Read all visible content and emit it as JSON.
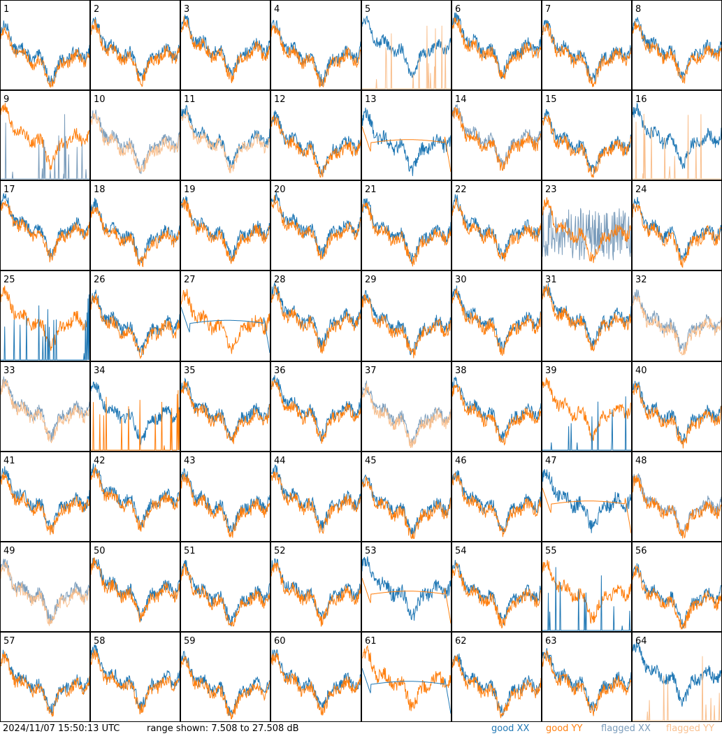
{
  "footer": {
    "timestamp": "2024/11/07 15:50:13 UTC",
    "range_text": "range shown: 7.508 to 27.508 dB"
  },
  "legend": [
    {
      "label": "good XX",
      "color": "#1f77b4"
    },
    {
      "label": "good YY",
      "color": "#ff7f0e"
    },
    {
      "label": "flagged XX",
      "color": "#7a9cbb"
    },
    {
      "label": "flagged YY",
      "color": "#f9c08f"
    }
  ],
  "colors": {
    "xx": "#1f77b4",
    "yy": "#ff7f0e",
    "xx_flagged": "#7a9cbb",
    "yy_flagged": "#f9c08f"
  },
  "chart_data": {
    "type": "line",
    "ylim": [
      7.508,
      27.508
    ],
    "grid_cols": 8,
    "panels": [
      {
        "label": "1",
        "xx": "good",
        "yy": "good",
        "note": ""
      },
      {
        "label": "2",
        "xx": "good",
        "yy": "good",
        "note": ""
      },
      {
        "label": "3",
        "xx": "good",
        "yy": "good",
        "note": ""
      },
      {
        "label": "4",
        "xx": "good",
        "yy": "good",
        "note": ""
      },
      {
        "label": "5",
        "xx": "good",
        "yy": "flagged",
        "note": "yy-spikes"
      },
      {
        "label": "6",
        "xx": "good",
        "yy": "good",
        "note": ""
      },
      {
        "label": "7",
        "xx": "good",
        "yy": "good",
        "note": ""
      },
      {
        "label": "8",
        "xx": "good",
        "yy": "good",
        "note": ""
      },
      {
        "label": "9",
        "xx": "flagged",
        "yy": "good",
        "note": "xx-spikes"
      },
      {
        "label": "10",
        "xx": "flagged",
        "yy": "flagged",
        "note": ""
      },
      {
        "label": "11",
        "xx": "good",
        "yy": "flagged",
        "note": ""
      },
      {
        "label": "12",
        "xx": "good",
        "yy": "good",
        "note": ""
      },
      {
        "label": "13",
        "xx": "good",
        "yy": "good",
        "note": "yy-flat"
      },
      {
        "label": "14",
        "xx": "flagged",
        "yy": "good",
        "note": ""
      },
      {
        "label": "15",
        "xx": "good",
        "yy": "good",
        "note": ""
      },
      {
        "label": "16",
        "xx": "good",
        "yy": "flagged",
        "note": "yy-spikes"
      },
      {
        "label": "17",
        "xx": "good",
        "yy": "good",
        "note": ""
      },
      {
        "label": "18",
        "xx": "good",
        "yy": "good",
        "note": ""
      },
      {
        "label": "19",
        "xx": "good",
        "yy": "good",
        "note": ""
      },
      {
        "label": "20",
        "xx": "good",
        "yy": "good",
        "note": ""
      },
      {
        "label": "21",
        "xx": "good",
        "yy": "good",
        "note": ""
      },
      {
        "label": "22",
        "xx": "good",
        "yy": "good",
        "note": ""
      },
      {
        "label": "23",
        "xx": "flagged",
        "yy": "good",
        "note": "xx-noisy"
      },
      {
        "label": "24",
        "xx": "good",
        "yy": "good",
        "note": ""
      },
      {
        "label": "25",
        "xx": "good",
        "yy": "good",
        "note": "xx-spikes"
      },
      {
        "label": "26",
        "xx": "good",
        "yy": "good",
        "note": ""
      },
      {
        "label": "27",
        "xx": "good",
        "yy": "good",
        "note": "xx-flat"
      },
      {
        "label": "28",
        "xx": "good",
        "yy": "good",
        "note": ""
      },
      {
        "label": "29",
        "xx": "good",
        "yy": "good",
        "note": ""
      },
      {
        "label": "30",
        "xx": "good",
        "yy": "good",
        "note": ""
      },
      {
        "label": "31",
        "xx": "good",
        "yy": "good",
        "note": ""
      },
      {
        "label": "32",
        "xx": "flagged",
        "yy": "flagged",
        "note": ""
      },
      {
        "label": "33",
        "xx": "flagged",
        "yy": "flagged",
        "note": ""
      },
      {
        "label": "34",
        "xx": "good",
        "yy": "good",
        "note": "yy-spikes"
      },
      {
        "label": "35",
        "xx": "good",
        "yy": "good",
        "note": ""
      },
      {
        "label": "36",
        "xx": "good",
        "yy": "good",
        "note": ""
      },
      {
        "label": "37",
        "xx": "flagged",
        "yy": "flagged",
        "note": ""
      },
      {
        "label": "38",
        "xx": "good",
        "yy": "good",
        "note": ""
      },
      {
        "label": "39",
        "xx": "good",
        "yy": "good",
        "note": "xx-spikes"
      },
      {
        "label": "40",
        "xx": "good",
        "yy": "good",
        "note": ""
      },
      {
        "label": "41",
        "xx": "good",
        "yy": "good",
        "note": ""
      },
      {
        "label": "42",
        "xx": "good",
        "yy": "good",
        "note": ""
      },
      {
        "label": "43",
        "xx": "good",
        "yy": "good",
        "note": ""
      },
      {
        "label": "44",
        "xx": "good",
        "yy": "good",
        "note": ""
      },
      {
        "label": "45",
        "xx": "good",
        "yy": "good",
        "note": ""
      },
      {
        "label": "46",
        "xx": "good",
        "yy": "good",
        "note": ""
      },
      {
        "label": "47",
        "xx": "good",
        "yy": "good",
        "note": "yy-flat"
      },
      {
        "label": "48",
        "xx": "flagged",
        "yy": "good",
        "note": ""
      },
      {
        "label": "49",
        "xx": "flagged",
        "yy": "flagged",
        "note": ""
      },
      {
        "label": "50",
        "xx": "good",
        "yy": "good",
        "note": ""
      },
      {
        "label": "51",
        "xx": "good",
        "yy": "good",
        "note": ""
      },
      {
        "label": "52",
        "xx": "good",
        "yy": "good",
        "note": ""
      },
      {
        "label": "53",
        "xx": "good",
        "yy": "good",
        "note": "yy-flat"
      },
      {
        "label": "54",
        "xx": "good",
        "yy": "good",
        "note": ""
      },
      {
        "label": "55",
        "xx": "good",
        "yy": "good",
        "note": "xx-spikes"
      },
      {
        "label": "56",
        "xx": "good",
        "yy": "good",
        "note": ""
      },
      {
        "label": "57",
        "xx": "good",
        "yy": "good",
        "note": ""
      },
      {
        "label": "58",
        "xx": "good",
        "yy": "good",
        "note": ""
      },
      {
        "label": "59",
        "xx": "good",
        "yy": "good",
        "note": ""
      },
      {
        "label": "60",
        "xx": "good",
        "yy": "good",
        "note": ""
      },
      {
        "label": "61",
        "xx": "good",
        "yy": "good",
        "note": "xx-flat"
      },
      {
        "label": "62",
        "xx": "good",
        "yy": "good",
        "note": ""
      },
      {
        "label": "63",
        "xx": "good",
        "yy": "good",
        "note": ""
      },
      {
        "label": "64",
        "xx": "good",
        "yy": "flagged",
        "note": "yy-spikes"
      }
    ]
  }
}
